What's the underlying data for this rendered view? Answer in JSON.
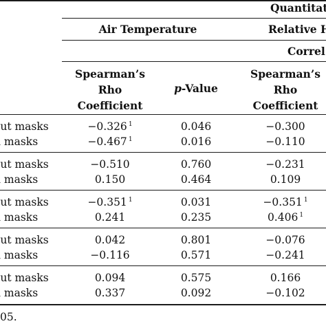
{
  "header": {
    "group_title": "Quantitat",
    "air_temperature": "Air Temperature",
    "relative_humidity": "Relative H",
    "correl": "Correl"
  },
  "columns": {
    "rho_line1": "Spearman’s",
    "rho_line2": "Rho",
    "rho_line3": "Coefficient",
    "pvalue_italic": "p",
    "pvalue_rest": "-Value"
  },
  "groups": [
    {
      "rows": [
        {
          "label": "out masks",
          "rho": "−0.326",
          "rho_sup": "1",
          "p": "0.046",
          "rh_rho": "−0.300",
          "rh_sup": ""
        },
        {
          "label": "n masks",
          "rho": "−0.467",
          "rho_sup": "1",
          "p": "0.016",
          "rh_rho": "−0.110",
          "rh_sup": ""
        }
      ]
    },
    {
      "rows": [
        {
          "label": "out masks",
          "rho": "−0.510",
          "rho_sup": "",
          "p": "0.760",
          "rh_rho": "−0.231",
          "rh_sup": ""
        },
        {
          "label": "n masks",
          "rho": "0.150",
          "rho_sup": "",
          "p": "0.464",
          "rh_rho": "0.109",
          "rh_sup": ""
        }
      ]
    },
    {
      "rows": [
        {
          "label": "out masks",
          "rho": "−0.351",
          "rho_sup": "1",
          "p": "0.031",
          "rh_rho": "−0.351",
          "rh_sup": "1"
        },
        {
          "label": "n masks",
          "rho": "0.241",
          "rho_sup": "",
          "p": "0.235",
          "rh_rho": "0.406",
          "rh_sup": "1"
        }
      ]
    },
    {
      "rows": [
        {
          "label": "out masks",
          "rho": "0.042",
          "rho_sup": "",
          "p": "0.801",
          "rh_rho": "−0.076",
          "rh_sup": ""
        },
        {
          "label": "n masks",
          "rho": "−0.116",
          "rho_sup": "",
          "p": "0.571",
          "rh_rho": "−0.241",
          "rh_sup": ""
        }
      ]
    },
    {
      "rows": [
        {
          "label": "out masks",
          "rho": "0.094",
          "rho_sup": "",
          "p": "0.575",
          "rh_rho": "0.166",
          "rh_sup": ""
        },
        {
          "label": "n masks",
          "rho": "0.337",
          "rho_sup": "",
          "p": "0.092",
          "rh_rho": "−0.102",
          "rh_sup": ""
        }
      ]
    }
  ],
  "footnote": "05."
}
